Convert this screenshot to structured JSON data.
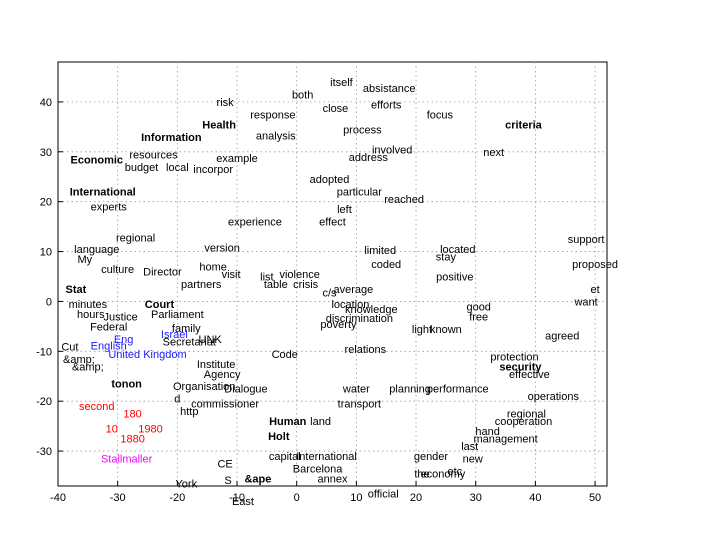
{
  "chart_data": {
    "type": "scatter",
    "title": "",
    "xlabel": "",
    "ylabel": "",
    "xlim": [
      -40,
      52
    ],
    "ylim": [
      -37,
      48
    ],
    "xticks": [
      -40,
      -30,
      -20,
      -10,
      0,
      10,
      20,
      30,
      40,
      50
    ],
    "yticks": [
      -30,
      -20,
      -10,
      0,
      10,
      20,
      30,
      40
    ],
    "grid": true,
    "colors": {
      "default": "#000000",
      "blue": "#1a1aff",
      "red": "#ff0000",
      "magenta": "#ff00ff"
    },
    "points": [
      {
        "text": "itself",
        "x": 7.5,
        "y": 44.0,
        "c": "default",
        "b": false
      },
      {
        "text": "both",
        "x": 1.0,
        "y": 41.5,
        "c": "default",
        "b": false
      },
      {
        "text": "absistance",
        "x": 15.5,
        "y": 42.8,
        "c": "default",
        "b": false
      },
      {
        "text": "risk",
        "x": -12.0,
        "y": 40.0,
        "c": "default",
        "b": false
      },
      {
        "text": "close",
        "x": 6.5,
        "y": 38.8,
        "c": "default",
        "b": false
      },
      {
        "text": "efforts",
        "x": 15.0,
        "y": 39.5,
        "c": "default",
        "b": false
      },
      {
        "text": "focus",
        "x": 24.0,
        "y": 37.5,
        "c": "default",
        "b": false
      },
      {
        "text": "response",
        "x": -4.0,
        "y": 37.5,
        "c": "default",
        "b": false
      },
      {
        "text": "Health",
        "x": -13.0,
        "y": 35.5,
        "c": "default",
        "b": true
      },
      {
        "text": "process",
        "x": 11.0,
        "y": 34.5,
        "c": "default",
        "b": false
      },
      {
        "text": "analysis",
        "x": -3.5,
        "y": 33.3,
        "c": "default",
        "b": false
      },
      {
        "text": "criteria",
        "x": 38.0,
        "y": 35.5,
        "c": "default",
        "b": true
      },
      {
        "text": "Information",
        "x": -21.0,
        "y": 33.0,
        "c": "default",
        "b": true
      },
      {
        "text": "involved",
        "x": 16.0,
        "y": 30.5,
        "c": "default",
        "b": false
      },
      {
        "text": "next",
        "x": 33.0,
        "y": 30.0,
        "c": "default",
        "b": false
      },
      {
        "text": "Economic",
        "x": -33.5,
        "y": 28.5,
        "c": "default",
        "b": true
      },
      {
        "text": "resources",
        "x": -24.0,
        "y": 29.5,
        "c": "default",
        "b": false
      },
      {
        "text": "example",
        "x": -10.0,
        "y": 28.8,
        "c": "default",
        "b": false
      },
      {
        "text": "address",
        "x": 12.0,
        "y": 29.0,
        "c": "default",
        "b": false
      },
      {
        "text": "budget",
        "x": -26.0,
        "y": 27.0,
        "c": "default",
        "b": false
      },
      {
        "text": "local",
        "x": -20.0,
        "y": 27.0,
        "c": "default",
        "b": false
      },
      {
        "text": "incorpor",
        "x": -14.0,
        "y": 26.5,
        "c": "default",
        "b": false
      },
      {
        "text": "International",
        "x": -32.5,
        "y": 22.0,
        "c": "default",
        "b": true
      },
      {
        "text": "adopted",
        "x": 5.5,
        "y": 24.5,
        "c": "default",
        "b": false
      },
      {
        "text": "particular",
        "x": 10.5,
        "y": 22.0,
        "c": "default",
        "b": false
      },
      {
        "text": "experts",
        "x": -31.5,
        "y": 19.0,
        "c": "default",
        "b": false
      },
      {
        "text": "left",
        "x": 8.0,
        "y": 18.5,
        "c": "default",
        "b": false
      },
      {
        "text": "reached",
        "x": 18.0,
        "y": 20.5,
        "c": "default",
        "b": false
      },
      {
        "text": "effect",
        "x": 6.0,
        "y": 16.0,
        "c": "default",
        "b": false
      },
      {
        "text": "language",
        "x": -33.5,
        "y": 10.5,
        "c": "default",
        "b": false
      },
      {
        "text": "regional",
        "x": -27.0,
        "y": 12.8,
        "c": "default",
        "b": false
      },
      {
        "text": "experience",
        "x": -7.0,
        "y": 16.0,
        "c": "default",
        "b": false
      },
      {
        "text": "version",
        "x": -12.5,
        "y": 10.8,
        "c": "default",
        "b": false
      },
      {
        "text": "limited",
        "x": 14.0,
        "y": 10.3,
        "c": "default",
        "b": false
      },
      {
        "text": "located",
        "x": 27.0,
        "y": 10.5,
        "c": "default",
        "b": false
      },
      {
        "text": "stay",
        "x": 25.0,
        "y": 9.0,
        "c": "default",
        "b": false
      },
      {
        "text": "support",
        "x": 48.5,
        "y": 12.5,
        "c": "default",
        "b": false
      },
      {
        "text": "proposed",
        "x": 50.0,
        "y": 7.5,
        "c": "default",
        "b": false
      },
      {
        "text": "My",
        "x": -35.5,
        "y": 8.5,
        "c": "default",
        "b": false
      },
      {
        "text": "culture",
        "x": -30.0,
        "y": 6.5,
        "c": "default",
        "b": false
      },
      {
        "text": "Director",
        "x": -22.5,
        "y": 6.0,
        "c": "default",
        "b": false
      },
      {
        "text": "home",
        "x": -14.0,
        "y": 7.0,
        "c": "default",
        "b": false
      },
      {
        "text": "visit",
        "x": -11.0,
        "y": 5.5,
        "c": "default",
        "b": false
      },
      {
        "text": "list",
        "x": -5.0,
        "y": 5.0,
        "c": "default",
        "b": false
      },
      {
        "text": "violence",
        "x": 0.5,
        "y": 5.5,
        "c": "default",
        "b": false
      },
      {
        "text": "coded",
        "x": 15.0,
        "y": 7.5,
        "c": "default",
        "b": false
      },
      {
        "text": "positive",
        "x": 26.5,
        "y": 5.0,
        "c": "default",
        "b": false
      },
      {
        "text": "table",
        "x": -3.5,
        "y": 3.5,
        "c": "default",
        "b": false
      },
      {
        "text": "crisis",
        "x": 1.5,
        "y": 3.5,
        "c": "default",
        "b": false
      },
      {
        "text": "partners",
        "x": -16.0,
        "y": 3.5,
        "c": "default",
        "b": false
      },
      {
        "text": "et",
        "x": 50.0,
        "y": 2.5,
        "c": "default",
        "b": false
      },
      {
        "text": "Stat",
        "x": -37.0,
        "y": 2.5,
        "c": "default",
        "b": true
      },
      {
        "text": "average",
        "x": 9.5,
        "y": 2.5,
        "c": "default",
        "b": false
      },
      {
        "text": "c/s",
        "x": 5.5,
        "y": 1.8,
        "c": "default",
        "b": false
      },
      {
        "text": "location",
        "x": 9.0,
        "y": -0.5,
        "c": "default",
        "b": false
      },
      {
        "text": "want",
        "x": 48.5,
        "y": 0.0,
        "c": "default",
        "b": false
      },
      {
        "text": "minutes",
        "x": -35.0,
        "y": -0.5,
        "c": "default",
        "b": false
      },
      {
        "text": "Court",
        "x": -23.0,
        "y": -0.5,
        "c": "default",
        "b": true
      },
      {
        "text": "knowledge",
        "x": 12.5,
        "y": -1.5,
        "c": "default",
        "b": false
      },
      {
        "text": "good",
        "x": 30.5,
        "y": -1.0,
        "c": "default",
        "b": false
      },
      {
        "text": "hours",
        "x": -34.5,
        "y": -2.5,
        "c": "default",
        "b": false
      },
      {
        "text": "Parliament",
        "x": -20.0,
        "y": -2.5,
        "c": "default",
        "b": false
      },
      {
        "text": "Justice",
        "x": -29.5,
        "y": -3.0,
        "c": "default",
        "b": false
      },
      {
        "text": "discrimination",
        "x": 10.5,
        "y": -3.3,
        "c": "default",
        "b": false
      },
      {
        "text": "free",
        "x": 30.5,
        "y": -3.0,
        "c": "default",
        "b": false
      },
      {
        "text": "poverty",
        "x": 7.0,
        "y": -4.5,
        "c": "default",
        "b": false
      },
      {
        "text": "Federal",
        "x": -31.5,
        "y": -5.0,
        "c": "default",
        "b": false
      },
      {
        "text": "family",
        "x": -18.5,
        "y": -5.3,
        "c": "default",
        "b": false
      },
      {
        "text": "light",
        "x": 21.0,
        "y": -5.5,
        "c": "default",
        "b": false
      },
      {
        "text": "known",
        "x": 25.0,
        "y": -5.5,
        "c": "default",
        "b": false
      },
      {
        "text": "agreed",
        "x": 44.5,
        "y": -6.8,
        "c": "default",
        "b": false
      },
      {
        "text": "Israel",
        "x": -20.5,
        "y": -6.5,
        "c": "blue",
        "b": false
      },
      {
        "text": "Secretariat",
        "x": -18.0,
        "y": -8.0,
        "c": "default",
        "b": false
      },
      {
        "text": "UNK",
        "x": -14.5,
        "y": -7.5,
        "c": "default",
        "b": false
      },
      {
        "text": "Eng",
        "x": -29.0,
        "y": -7.5,
        "c": "blue",
        "b": false
      },
      {
        "text": "English",
        "x": -31.5,
        "y": -8.8,
        "c": "blue",
        "b": false
      },
      {
        "text": "Cut",
        "x": -38.0,
        "y": -9.0,
        "c": "default",
        "b": false
      },
      {
        "text": "relations",
        "x": 11.5,
        "y": -9.5,
        "c": "default",
        "b": false
      },
      {
        "text": "United Kingdom",
        "x": -25.0,
        "y": -10.5,
        "c": "blue",
        "b": false
      },
      {
        "text": "Code",
        "x": -2.0,
        "y": -10.5,
        "c": "default",
        "b": false
      },
      {
        "text": "&amp;",
        "x": -36.5,
        "y": -11.5,
        "c": "default",
        "b": false
      },
      {
        "text": "protection",
        "x": 36.5,
        "y": -11.0,
        "c": "default",
        "b": false
      },
      {
        "text": "&amp;",
        "x": -35.0,
        "y": -13.0,
        "c": "default",
        "b": false
      },
      {
        "text": "Institute",
        "x": -13.5,
        "y": -12.5,
        "c": "default",
        "b": false
      },
      {
        "text": "security",
        "x": 37.5,
        "y": -13.0,
        "c": "default",
        "b": true
      },
      {
        "text": "Agency",
        "x": -12.5,
        "y": -14.5,
        "c": "default",
        "b": false
      },
      {
        "text": "effective",
        "x": 39.0,
        "y": -14.5,
        "c": "default",
        "b": false
      },
      {
        "text": "tonon",
        "x": -28.5,
        "y": -16.5,
        "c": "default",
        "b": true
      },
      {
        "text": "Organisation",
        "x": -15.5,
        "y": -17.0,
        "c": "default",
        "b": false
      },
      {
        "text": "Dialogue",
        "x": -8.5,
        "y": -17.5,
        "c": "default",
        "b": false
      },
      {
        "text": "water",
        "x": 10.0,
        "y": -17.5,
        "c": "default",
        "b": false
      },
      {
        "text": "planning",
        "x": 19.0,
        "y": -17.5,
        "c": "default",
        "b": false
      },
      {
        "text": "performance",
        "x": 27.0,
        "y": -17.5,
        "c": "default",
        "b": false
      },
      {
        "text": "operations",
        "x": 43.0,
        "y": -19.0,
        "c": "default",
        "b": false
      },
      {
        "text": "d",
        "x": -20.0,
        "y": -19.5,
        "c": "default",
        "b": false
      },
      {
        "text": "commissioner",
        "x": -12.0,
        "y": -20.5,
        "c": "default",
        "b": false
      },
      {
        "text": "transport",
        "x": 10.5,
        "y": -20.5,
        "c": "default",
        "b": false
      },
      {
        "text": "http",
        "x": -18.0,
        "y": -22.0,
        "c": "default",
        "b": false
      },
      {
        "text": "regional",
        "x": 38.5,
        "y": -22.5,
        "c": "default",
        "b": false
      },
      {
        "text": "second",
        "x": -33.5,
        "y": -21.0,
        "c": "red",
        "b": false
      },
      {
        "text": "180",
        "x": -27.5,
        "y": -22.5,
        "c": "red",
        "b": false
      },
      {
        "text": "Human",
        "x": -1.5,
        "y": -24.0,
        "c": "default",
        "b": true
      },
      {
        "text": "land",
        "x": 4.0,
        "y": -24.0,
        "c": "default",
        "b": false
      },
      {
        "text": "cooperation",
        "x": 38.0,
        "y": -24.0,
        "c": "default",
        "b": false
      },
      {
        "text": "10",
        "x": -31.0,
        "y": -25.5,
        "c": "red",
        "b": false
      },
      {
        "text": "1980",
        "x": -24.5,
        "y": -25.5,
        "c": "red",
        "b": false
      },
      {
        "text": "hand",
        "x": 32.0,
        "y": -26.0,
        "c": "default",
        "b": false
      },
      {
        "text": "Holt",
        "x": -3.0,
        "y": -27.0,
        "c": "default",
        "b": true
      },
      {
        "text": "management",
        "x": 35.0,
        "y": -27.5,
        "c": "default",
        "b": false
      },
      {
        "text": "1880",
        "x": -27.5,
        "y": -27.5,
        "c": "red",
        "b": false
      },
      {
        "text": "last",
        "x": 29.0,
        "y": -29.0,
        "c": "default",
        "b": false
      },
      {
        "text": "capital",
        "x": -2.0,
        "y": -31.0,
        "c": "default",
        "b": false
      },
      {
        "text": "International",
        "x": 5.0,
        "y": -31.0,
        "c": "default",
        "b": false
      },
      {
        "text": "gender",
        "x": 22.5,
        "y": -31.0,
        "c": "default",
        "b": false
      },
      {
        "text": "new",
        "x": 29.5,
        "y": -31.5,
        "c": "default",
        "b": false
      },
      {
        "text": "Stallmaller",
        "x": -28.5,
        "y": -31.5,
        "c": "magenta",
        "b": false
      },
      {
        "text": "CE",
        "x": -12.0,
        "y": -32.5,
        "c": "default",
        "b": false
      },
      {
        "text": "Barcelona",
        "x": 3.5,
        "y": -33.5,
        "c": "default",
        "b": false
      },
      {
        "text": "the",
        "x": 21.0,
        "y": -34.5,
        "c": "default",
        "b": false
      },
      {
        "text": "economy",
        "x": 24.5,
        "y": -34.5,
        "c": "default",
        "b": false
      },
      {
        "text": "etc",
        "x": 26.5,
        "y": -34.0,
        "c": "default",
        "b": false
      },
      {
        "text": "S",
        "x": -11.5,
        "y": -35.8,
        "c": "default",
        "b": false
      },
      {
        "text": "&ape",
        "x": -6.5,
        "y": -35.5,
        "c": "default",
        "b": true
      },
      {
        "text": "annex",
        "x": 6.0,
        "y": -35.5,
        "c": "default",
        "b": false
      },
      {
        "text": "York",
        "x": -18.5,
        "y": -36.5,
        "c": "default",
        "b": false
      },
      {
        "text": "official",
        "x": 14.5,
        "y": -38.5,
        "c": "default",
        "b": false
      },
      {
        "text": "East",
        "x": -9.0,
        "y": -40.0,
        "c": "default",
        "b": false
      }
    ]
  }
}
